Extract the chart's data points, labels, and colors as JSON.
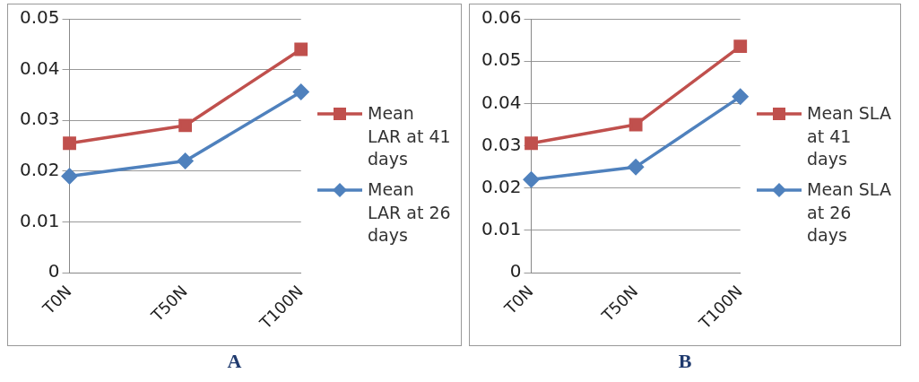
{
  "chart_data": [
    {
      "type": "line",
      "categories": [
        "T0N",
        "T50N",
        "T100N"
      ],
      "ylim": [
        0,
        0.05
      ],
      "yticks": [
        0,
        0.01,
        0.02,
        0.03,
        0.04,
        0.05
      ],
      "grid": "y",
      "legend": "right",
      "annotations": [
        "A"
      ],
      "series": [
        {
          "name": "Mean LAR at 41 days",
          "color": "#c0504d",
          "marker": "square",
          "values": [
            0.0255,
            0.029,
            0.044
          ]
        },
        {
          "name": "Mean LAR at 26 days",
          "color": "#4f81bd",
          "marker": "diamond",
          "values": [
            0.019,
            0.022,
            0.0356
          ]
        }
      ]
    },
    {
      "type": "line",
      "categories": [
        "T0N",
        "T50N",
        "T100N"
      ],
      "ylim": [
        0,
        0.06
      ],
      "yticks": [
        0,
        0.01,
        0.02,
        0.03,
        0.04,
        0.05,
        0.06
      ],
      "grid": "y",
      "legend": "right",
      "annotations": [
        "B"
      ],
      "series": [
        {
          "name": "Mean SLA at 41 days",
          "color": "#c0504d",
          "marker": "square",
          "values": [
            0.0306,
            0.035,
            0.0535
          ]
        },
        {
          "name": "Mean SLA at 26 days",
          "color": "#4f81bd",
          "marker": "diamond",
          "values": [
            0.022,
            0.025,
            0.0416
          ]
        }
      ]
    }
  ]
}
